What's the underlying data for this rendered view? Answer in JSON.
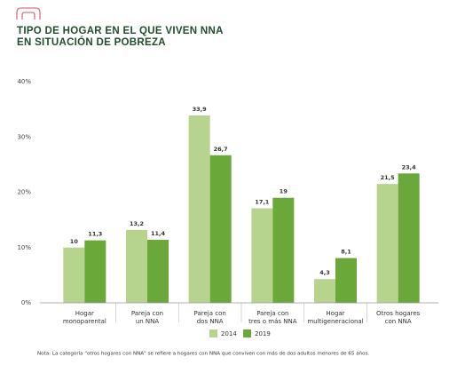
{
  "chart_data": {
    "type": "bar",
    "title": [
      "TIPO DE HOGAR EN EL QUE VIVEN NNA",
      "EN SITUACIÓN DE POBREZA"
    ],
    "categories": [
      [
        "Hogar",
        "monoparental"
      ],
      [
        "Pareja con",
        "un NNA"
      ],
      [
        "Pareja con",
        "dos NNA"
      ],
      [
        "Pareja con",
        "tres o más NNA"
      ],
      [
        "Hogar",
        "multigeneracional"
      ],
      [
        "Otros hogares",
        "con NNA"
      ]
    ],
    "series": [
      {
        "name": "2014",
        "color": "#b7d48f",
        "values": [
          10,
          13.2,
          33.9,
          17.1,
          4.3,
          21.5
        ],
        "value_labels": [
          "10",
          "13,2",
          "33,9",
          "17,1",
          "4,3",
          "21,5"
        ]
      },
      {
        "name": "2019",
        "color": "#6aa83a",
        "values": [
          11.3,
          11.4,
          26.7,
          19,
          8.1,
          23.4
        ],
        "value_labels": [
          "11,3",
          "11,4",
          "26,7",
          "19",
          "8,1",
          "23,4"
        ]
      }
    ],
    "ylim": [
      0,
      40
    ],
    "yticks": [
      {
        "value": 0,
        "label": "0%"
      },
      {
        "value": 10,
        "label": "10%"
      },
      {
        "value": 20,
        "label": "20%"
      },
      {
        "value": 30,
        "label": "30%"
      },
      {
        "value": 40,
        "label": "40%"
      }
    ],
    "grid": false,
    "legend": "bottom",
    "note": "Nota: La categoría \"otros hogares con NNA\" se refiere a hogares con NNA que conviven con más de dos adultos menores de 65 años."
  }
}
